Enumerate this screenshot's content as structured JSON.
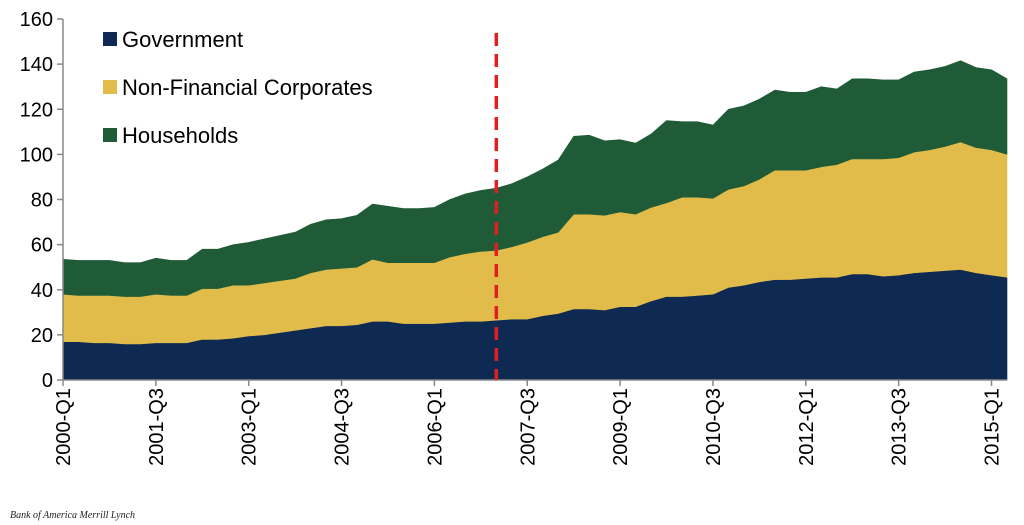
{
  "chart_data": {
    "type": "area",
    "stacked": true,
    "ylim": [
      0,
      160
    ],
    "yticks": [
      0,
      20,
      40,
      60,
      80,
      100,
      120,
      140,
      160
    ],
    "xtick_labels": [
      "2000-Q1",
      "2001-Q3",
      "2003-Q1",
      "2004-Q3",
      "2006-Q1",
      "2007-Q3",
      "2009-Q1",
      "2010-Q3",
      "2012-Q1",
      "2013-Q3",
      "2015-Q1"
    ],
    "x_start": "2000-Q1",
    "x_end": "2015-Q1",
    "reference_line": {
      "x": "2007-Q1",
      "color": "#e02020",
      "style": "dashed"
    },
    "legend_position": "top-left",
    "series": [
      {
        "name": "Government",
        "color": "#0f2a52",
        "values": [
          17,
          17,
          16.5,
          16.5,
          16,
          16,
          16.5,
          16.5,
          16.5,
          18,
          18,
          18.5,
          19.5,
          20,
          21,
          22,
          23,
          24,
          24,
          24.5,
          26,
          26,
          25,
          25,
          25,
          25.5,
          26,
          26,
          26.5,
          27,
          27,
          28.5,
          29.5,
          31.5,
          31.5,
          31,
          32.5,
          32.5,
          35,
          37,
          37,
          37.5,
          38,
          41,
          42,
          43.5,
          44.5,
          44.5,
          45,
          45.5,
          45.5,
          47,
          47,
          46,
          46.5,
          47.5,
          48,
          48.5,
          49,
          47.5,
          46.5,
          45.5
        ]
      },
      {
        "name": "Non-Financial Corporates",
        "color": "#e2bc4b",
        "values": [
          21,
          20.5,
          21,
          21,
          21,
          21,
          21.5,
          21,
          21,
          22.5,
          22.5,
          23.5,
          22.5,
          23,
          23,
          23,
          24.5,
          25,
          25.5,
          25.5,
          27.5,
          26,
          27,
          27,
          27,
          29,
          30,
          31,
          31,
          32,
          34,
          35,
          36,
          42,
          42,
          42,
          42,
          41,
          41.5,
          41.5,
          44,
          43.5,
          42.5,
          43.5,
          44,
          45.5,
          48.5,
          48.5,
          48,
          49,
          50,
          51,
          51,
          52,
          52,
          53.5,
          54,
          55,
          56.5,
          55.5,
          55.5,
          54.5
        ]
      },
      {
        "name": "Households",
        "color": "#1e5b36",
        "values": [
          15.5,
          15.5,
          15.5,
          15.5,
          15,
          15,
          16,
          15.5,
          15.5,
          17.5,
          17.5,
          18,
          19,
          19.5,
          20,
          20.5,
          21.5,
          22,
          22,
          23,
          24.5,
          25,
          24,
          24,
          24.5,
          25.5,
          26.5,
          27,
          27.5,
          28,
          29,
          30,
          32,
          34.5,
          35,
          33,
          32,
          31.5,
          32.5,
          36.5,
          33.5,
          33.5,
          32.5,
          35.5,
          35.5,
          35.5,
          35.5,
          34.5,
          34.5,
          35.5,
          33.5,
          35.5,
          35.5,
          35,
          34.5,
          35.5,
          35.5,
          35.5,
          36,
          35.5,
          35.5,
          33.5
        ]
      }
    ]
  },
  "source_note": "Bank of America Merrill Lynch"
}
